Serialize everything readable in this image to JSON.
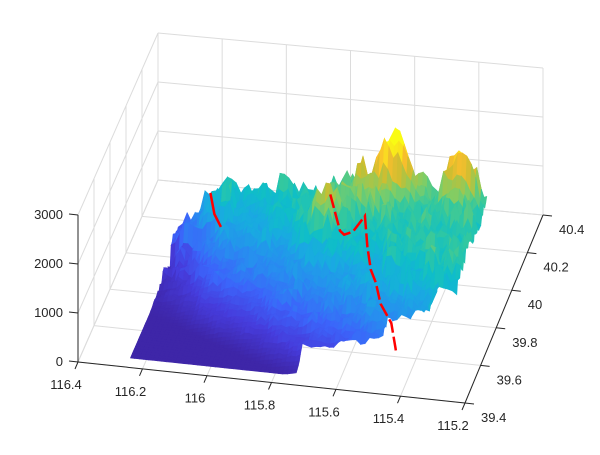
{
  "chart_data": {
    "type": "surface3d",
    "title": "",
    "xlabel": "",
    "ylabel": "",
    "zlabel": "",
    "colormap": "parula",
    "x_axis": {
      "range": [
        115.2,
        116.4
      ],
      "ticks": [
        116.4,
        116.2,
        116,
        115.8,
        115.6,
        115.4,
        115.2
      ],
      "tick_labels": [
        "116.4",
        "116.2",
        "116",
        "115.8",
        "115.6",
        "115.4",
        "115.2"
      ],
      "direction": "reversed"
    },
    "y_axis": {
      "range": [
        39.4,
        40.4
      ],
      "ticks": [
        39.4,
        39.6,
        39.8,
        40,
        40.2,
        40.4
      ],
      "tick_labels": [
        "39.4",
        "39.6",
        "39.8",
        "40",
        "40.2",
        "40.4"
      ]
    },
    "z_axis": {
      "range": [
        0,
        3000
      ],
      "ticks": [
        0,
        1000,
        2000,
        3000
      ],
      "tick_labels": [
        "0",
        "1000",
        "2000",
        "3000"
      ]
    },
    "grid": true,
    "surface_description": "Terrain elevation surface; flat low plain (near 0) in the southeast/front-left region, rising to mountainous ridges toward the northwest with peaks up to ~2500-2800",
    "overlay_line": {
      "color": "#ff0000",
      "description": "Red path line traced across the terrain surface from the back-left edge through the central ridge down to the front-right edge"
    },
    "line_color": "#ff0000",
    "axis_color": "#262626",
    "grid_color": "#dcdcdc"
  }
}
